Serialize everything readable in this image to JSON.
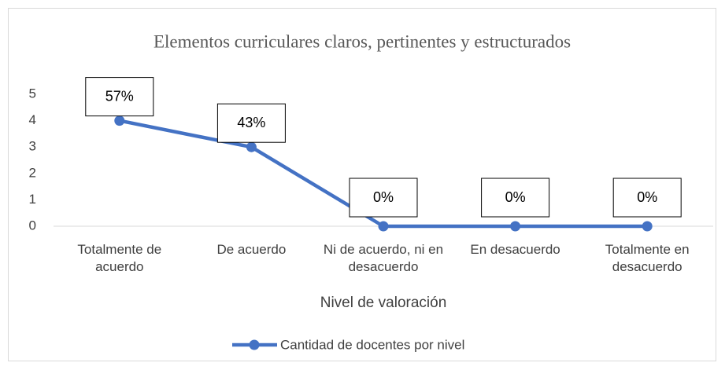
{
  "chart_data": {
    "type": "line",
    "title": "Elementos curriculares claros, pertinentes y estructurados",
    "x_label": "Nivel de valoración",
    "categories": [
      "Totalmente de acuerdo",
      "De acuerdo",
      "Ni de acuerdo, ni en desacuerdo",
      "En desacuerdo",
      "Totalmente en desacuerdo"
    ],
    "series": [
      {
        "name": "Cantidad de docentes por nivel",
        "color": "#4472c4",
        "values": [
          4,
          3,
          0,
          0,
          0
        ]
      }
    ],
    "percent_labels": [
      "57%",
      "43%",
      "0%",
      "0%",
      "0%"
    ],
    "ylim": [
      0,
      5
    ],
    "yticks": [
      0,
      1,
      2,
      3,
      4,
      5
    ],
    "grid": false,
    "legend": "bottom"
  }
}
